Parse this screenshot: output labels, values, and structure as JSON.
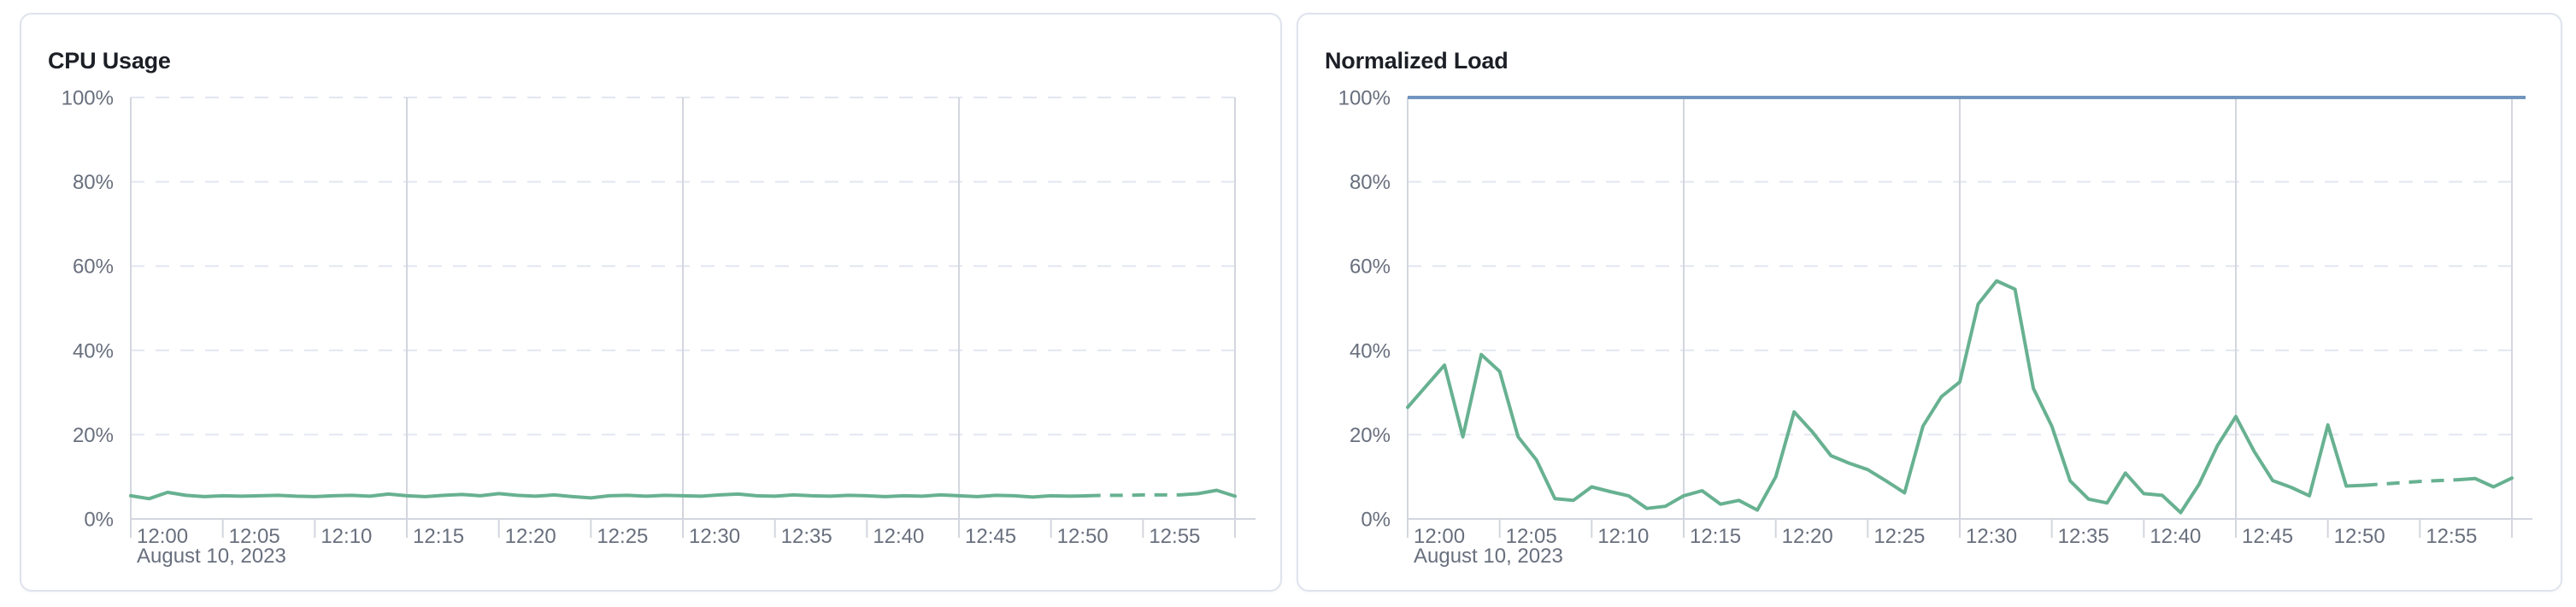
{
  "colors": {
    "series_green": "#67b191",
    "threshold_blue": "#7195bf",
    "axis_line": "#d3d6de",
    "grid_dashed": "#e3e6f0",
    "tick_label": "#686f7d",
    "title_text": "#1c1f26",
    "card_border": "#dfe3ed",
    "card_background": "#ffffff"
  },
  "chart_data": [
    {
      "type": "line",
      "title": "CPU Usage",
      "x_date_label": "August 10, 2023",
      "x_start": "12:00",
      "x_end": "13:00",
      "x_total_minutes": 60,
      "x_interval_minutes": 1,
      "x_tick_labels": [
        "12:00",
        "12:05",
        "12:10",
        "12:15",
        "12:20",
        "12:25",
        "12:30",
        "12:35",
        "12:40",
        "12:45",
        "12:50",
        "12:55"
      ],
      "y_tick_labels": [
        "0%",
        "20%",
        "40%",
        "60%",
        "80%",
        "100%"
      ],
      "ylabel": "",
      "xlabel": "",
      "ylim": [
        0,
        100
      ],
      "grid": {
        "vertical_solid_minutes": [
          15,
          30,
          45,
          60
        ],
        "horizontal_dashed_percents": [
          20,
          40,
          60,
          80,
          100
        ]
      },
      "threshold_line": null,
      "series": [
        {
          "name": "cpu-usage",
          "unit": "%",
          "dashed_segment_minutes": [
            52,
            57
          ],
          "values": [
            5.5,
            4.8,
            6.3,
            5.6,
            5.3,
            5.5,
            5.4,
            5.5,
            5.6,
            5.4,
            5.3,
            5.5,
            5.6,
            5.4,
            5.9,
            5.5,
            5.3,
            5.6,
            5.8,
            5.5,
            6.0,
            5.6,
            5.4,
            5.7,
            5.3,
            5.0,
            5.5,
            5.6,
            5.4,
            5.6,
            5.5,
            5.4,
            5.7,
            5.9,
            5.5,
            5.4,
            5.7,
            5.5,
            5.4,
            5.6,
            5.5,
            5.3,
            5.5,
            5.4,
            5.7,
            5.5,
            5.3,
            5.6,
            5.5,
            5.2,
            5.5,
            5.4,
            5.5,
            5.6,
            5.6,
            5.7,
            5.7,
            5.7,
            6.0,
            6.8,
            5.4
          ]
        }
      ]
    },
    {
      "type": "line",
      "title": "Normalized Load",
      "x_date_label": "August 10, 2023",
      "x_start": "12:00",
      "x_end": "13:00",
      "x_total_minutes": 60,
      "x_interval_minutes": 1,
      "x_tick_labels": [
        "12:00",
        "12:05",
        "12:10",
        "12:15",
        "12:20",
        "12:25",
        "12:30",
        "12:35",
        "12:40",
        "12:45",
        "12:50",
        "12:55"
      ],
      "y_tick_labels": [
        "0%",
        "20%",
        "40%",
        "60%",
        "80%",
        "100%"
      ],
      "ylabel": "",
      "xlabel": "",
      "ylim": [
        0,
        100
      ],
      "grid": {
        "vertical_solid_minutes": [
          15,
          30,
          45,
          60
        ],
        "horizontal_dashed_percents": [
          20,
          40,
          60,
          80,
          100
        ]
      },
      "threshold_line": {
        "value": 100,
        "color": "#7195bf"
      },
      "series": [
        {
          "name": "normalized-load",
          "unit": "%",
          "dashed_segment_minutes": [
            52,
            57
          ],
          "values": [
            26.5,
            31.5,
            36.5,
            19.5,
            39,
            35,
            19.5,
            14,
            4.8,
            4.4,
            7.6,
            6.5,
            5.5,
            2.5,
            3,
            5.5,
            6.7,
            3.5,
            4.4,
            2.1,
            10,
            25.4,
            20.6,
            15,
            13.2,
            11.7,
            9,
            6.2,
            22,
            29,
            32.5,
            51,
            56.5,
            54.5,
            31,
            22,
            9,
            4.7,
            3.8,
            10.9,
            6,
            5.6,
            1.5,
            8.2,
            17.4,
            24.3,
            16,
            9.1,
            7.5,
            5.5,
            22.3,
            7.8,
            8,
            8.3,
            8.6,
            8.9,
            9.1,
            9.3,
            9.6,
            7.6,
            9.7
          ]
        }
      ]
    }
  ]
}
